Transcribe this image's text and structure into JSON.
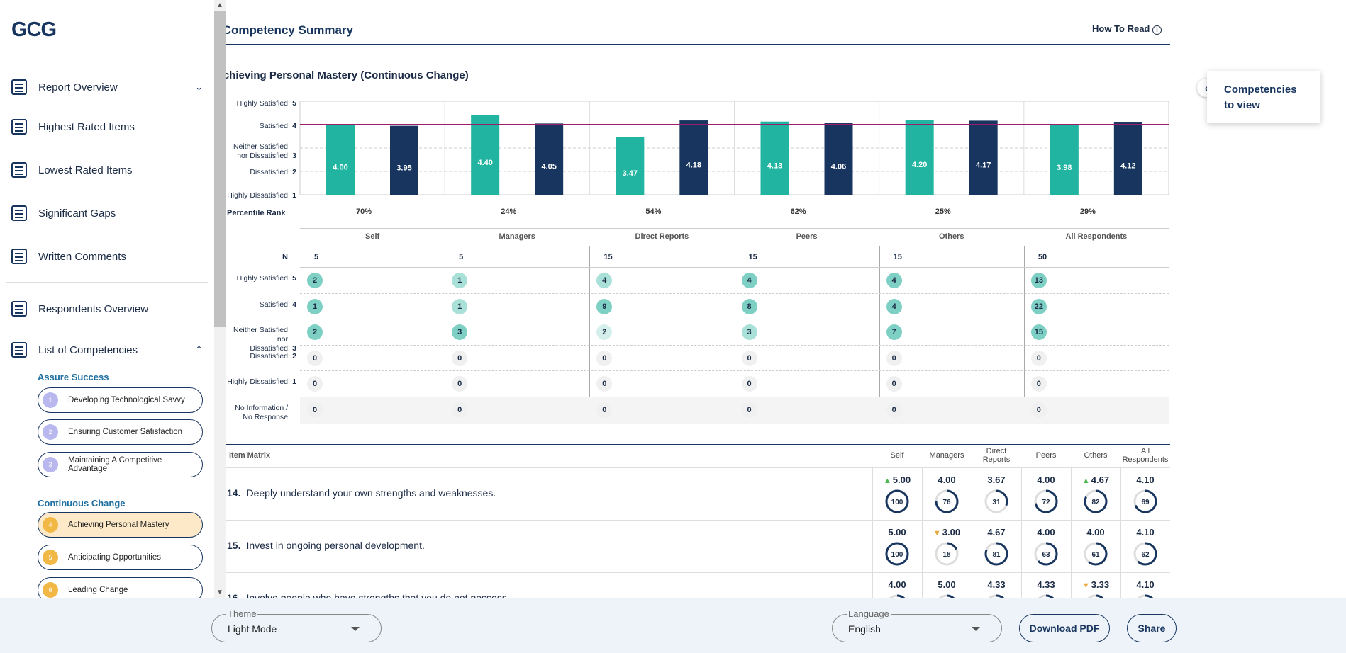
{
  "sidebar": {
    "logo": "GCG",
    "nav": [
      {
        "label": "Report Overview",
        "icon": "report-icon",
        "chevron": "⌄"
      },
      {
        "label": "Highest Rated Items",
        "icon": "highest-rated-icon"
      },
      {
        "label": "Lowest Rated Items",
        "icon": "lowest-rated-icon"
      },
      {
        "label": "Significant Gaps",
        "icon": "gaps-icon"
      },
      {
        "label": "Written Comments",
        "icon": "comments-icon"
      },
      {
        "label": "Respondents Overview",
        "icon": "respondents-icon"
      },
      {
        "label": "List of Competencies",
        "icon": "list-icon",
        "chevron": "⌃"
      }
    ],
    "groups": [
      {
        "name": "Assure Success",
        "items": [
          {
            "n": "1",
            "label": "Developing Technological Savvy"
          },
          {
            "n": "2",
            "label": "Ensuring Customer Satisfaction"
          },
          {
            "n": "3",
            "label": "Maintaining A Competitive Advantage"
          }
        ]
      },
      {
        "name": "Continuous Change",
        "items": [
          {
            "n": "4",
            "label": "Achieving Personal Mastery"
          },
          {
            "n": "5",
            "label": "Anticipating Opportunities"
          },
          {
            "n": "6",
            "label": "Leading Change"
          }
        ]
      }
    ]
  },
  "header": {
    "title": "Competency Summary",
    "how_to_read": "How To Read"
  },
  "competency_title": "Achieving Personal Mastery (Continuous Change)",
  "scale": [
    {
      "label": "Highly Satisfied",
      "v": "5"
    },
    {
      "label": "Satisfied",
      "v": "4"
    },
    {
      "label": "Neither Satisfied\nnor Dissatisfied",
      "v": "3"
    },
    {
      "label": "Dissatisfied",
      "v": "2"
    },
    {
      "label": "Highly Dissatisfied",
      "v": "1"
    }
  ],
  "percentile_label": "Percentile Rank",
  "chart_data": {
    "type": "bar",
    "categories": [
      "Self",
      "Managers",
      "Direct Reports",
      "Peers",
      "Others",
      "All Respondents"
    ],
    "series": [
      {
        "values": [
          4.0,
          4.4,
          3.47,
          4.13,
          4.2,
          3.98
        ],
        "color": "#21b5a1"
      },
      {
        "values": [
          3.95,
          4.05,
          4.18,
          4.06,
          4.17,
          4.12
        ],
        "color": "#17355e"
      }
    ],
    "value_labels": [
      [
        "4.00",
        "3.95"
      ],
      [
        "4.40",
        "4.05"
      ],
      [
        "3.47",
        "4.18"
      ],
      [
        "4.13",
        "4.06"
      ],
      [
        "4.20",
        "4.17"
      ],
      [
        "3.98",
        "4.12"
      ]
    ],
    "reference_line": 4.0,
    "reference_color": "#9b1e6e",
    "ylim": [
      1,
      5
    ],
    "percentiles": [
      "70%",
      "24%",
      "54%",
      "62%",
      "25%",
      "29%"
    ]
  },
  "dist": {
    "n_label": "N",
    "n": [
      "5",
      "5",
      "15",
      "15",
      "15",
      "50"
    ],
    "rows": [
      {
        "label": "Highly Satisfied",
        "v": "5",
        "vals": [
          "2",
          "1",
          "4",
          "4",
          "4",
          "13"
        ]
      },
      {
        "label": "Satisfied",
        "v": "4",
        "vals": [
          "1",
          "1",
          "9",
          "8",
          "4",
          "22"
        ]
      },
      {
        "label": "Neither Satisfied nor\nDissatisfied",
        "v": "3",
        "vals": [
          "2",
          "3",
          "2",
          "3",
          "7",
          "15"
        ]
      },
      {
        "label": "Dissatisfied",
        "v": "2",
        "vals": [
          "0",
          "0",
          "0",
          "0",
          "0",
          "0"
        ]
      },
      {
        "label": "Highly Dissatisfied",
        "v": "1",
        "vals": [
          "0",
          "0",
          "0",
          "0",
          "0",
          "0"
        ]
      },
      {
        "label": "No Information /\nNo Response",
        "v": "",
        "vals": [
          "0",
          "0",
          "0",
          "0",
          "0",
          "0"
        ]
      }
    ]
  },
  "matrix": {
    "title": "Item Matrix",
    "cols": [
      "Self",
      "Managers",
      "Direct\nReports",
      "Peers",
      "Others",
      "All\nRespondents"
    ],
    "items": [
      {
        "num": "14.",
        "text": "Deeply understand your own strengths and weaknesses.",
        "scores": [
          "5.00",
          "4.00",
          "3.67",
          "4.00",
          "4.67",
          "4.10"
        ],
        "marks": [
          "up",
          "",
          "",
          "",
          "up",
          ""
        ],
        "pct": [
          100,
          76,
          31,
          72,
          82,
          69
        ]
      },
      {
        "num": "15.",
        "text": "Invest in ongoing personal development.",
        "scores": [
          "5.00",
          "3.00",
          "4.67",
          "4.00",
          "4.00",
          "4.10"
        ],
        "marks": [
          "",
          "down",
          "",
          "",
          "",
          ""
        ],
        "pct": [
          100,
          18,
          81,
          63,
          61,
          62
        ]
      },
      {
        "num": "16.",
        "text": "Involve people who have strengths that you do not possess.",
        "scores": [
          "4.00",
          "5.00",
          "4.33",
          "4.33",
          "3.33",
          "4.10"
        ],
        "marks": [
          "",
          "",
          "",
          "",
          "down",
          ""
        ],
        "pct": []
      }
    ]
  },
  "ctv": {
    "label": "Competencies\nto view"
  },
  "footer": {
    "theme_label": "Theme",
    "theme_value": "Light Mode",
    "lang_label": "Language",
    "lang_value": "English",
    "download": "Download PDF",
    "share": "Share"
  }
}
